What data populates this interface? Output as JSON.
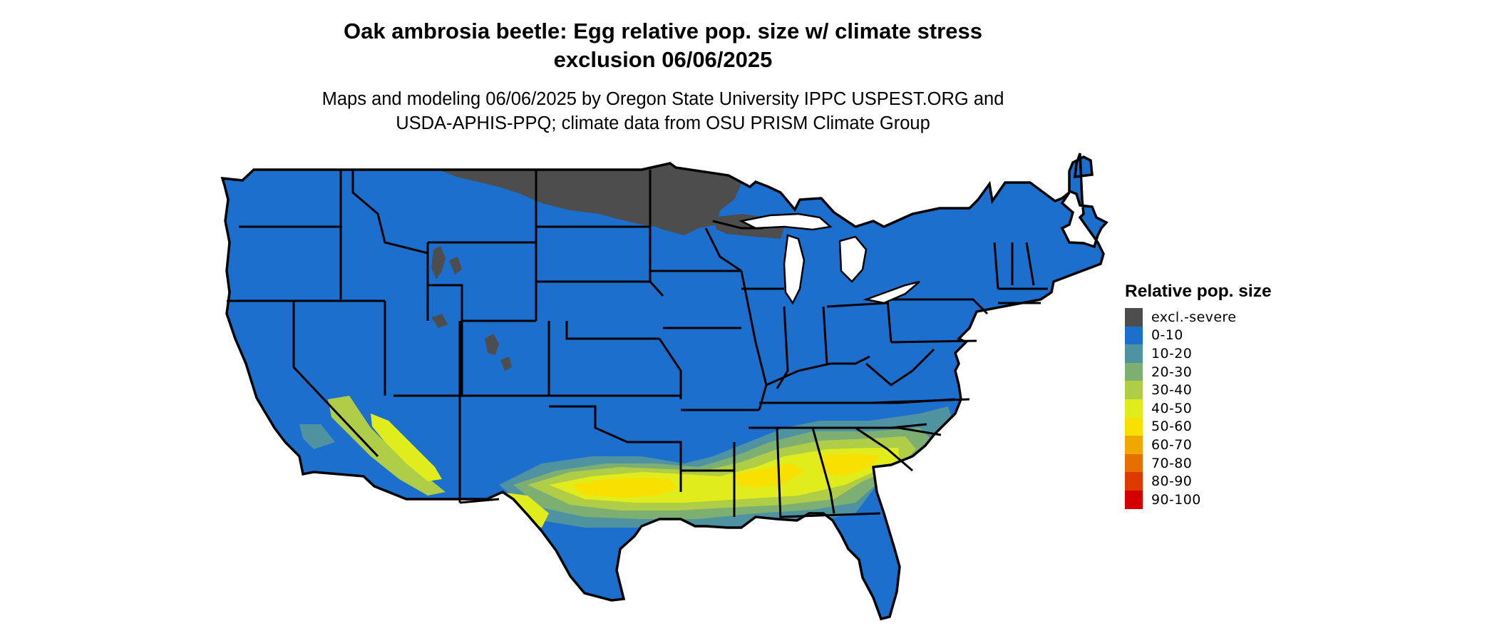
{
  "title_line1": "Oak ambrosia beetle: Egg relative pop. size w/ climate stress",
  "title_line2": "exclusion 06/06/2025",
  "subtitle_line1": "Maps and modeling 06/06/2025 by Oregon State University IPPC USPEST.ORG and",
  "subtitle_line2": "USDA-APHIS-PPQ; climate data from OSU PRISM Climate Group",
  "legend": {
    "title": "Relative pop. size",
    "items": [
      {
        "label": "excl.-severe",
        "color": "#4d4d4d"
      },
      {
        "label": "0-10",
        "color": "#1c6fcc"
      },
      {
        "label": "10-20",
        "color": "#4f93a0"
      },
      {
        "label": "20-30",
        "color": "#7daf72"
      },
      {
        "label": "30-40",
        "color": "#b0cd48"
      },
      {
        "label": "40-50",
        "color": "#e1ec1d"
      },
      {
        "label": "50-60",
        "color": "#f8e000"
      },
      {
        "label": "60-70",
        "color": "#f0a800"
      },
      {
        "label": "70-80",
        "color": "#e57000"
      },
      {
        "label": "80-90",
        "color": "#dd3a00"
      },
      {
        "label": "90-100",
        "color": "#d40000"
      }
    ]
  },
  "map": {
    "region": "Contiguous United States",
    "exclusion_color": "#4d4d4d",
    "base_color": "#1c6fcc",
    "border_color": "#000000"
  }
}
